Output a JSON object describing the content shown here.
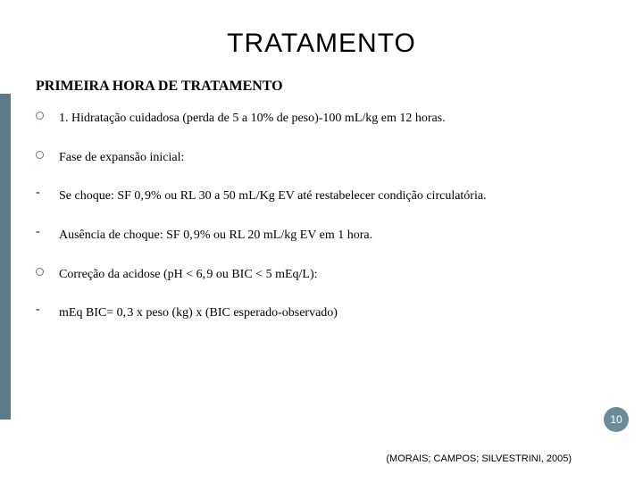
{
  "title": "TRATAMENTO",
  "section_heading": "PRIMEIRA HORA DE TRATAMENTO",
  "items": [
    {
      "marker": "circle",
      "text": "1. Hidratação cuidadosa (perda de 5 a 10% de peso)-100 mL/kg em 12 horas."
    },
    {
      "marker": "circle",
      "text": "Fase de expansão inicial:"
    },
    {
      "marker": "dash",
      "text": "Se choque: SF 0, 9% ou RL 30 a 50 mL/Kg EV até restabelecer condição circulatória."
    },
    {
      "marker": "dash",
      "text": "Ausência de choque: SF 0, 9% ou RL 20 mL/kg EV em 1 hora."
    },
    {
      "marker": "circle",
      "text": "Correção da acidose (pH < 6, 9 ou BIC < 5 mEq/L):"
    },
    {
      "marker": "dash",
      "text": "mEq BIC= 0, 3 x peso (kg) x (BIC esperado-observado)"
    }
  ],
  "page_number": "10",
  "citation": "(MORAIS; CAMPOS; SILVESTRINI, 2005)",
  "colors": {
    "accent": "#5c7a8a",
    "page_badge": "#6b8b99",
    "text": "#000000",
    "background": "#ffffff"
  }
}
